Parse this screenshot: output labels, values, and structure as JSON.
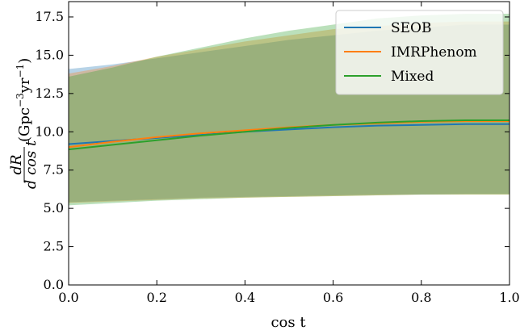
{
  "chart_data": {
    "type": "line",
    "xlabel": "cos t",
    "ylabel": "dR/d cos t (Gpc^-3 yr^-1)",
    "ylabel_parts": {
      "frac_num": "dR",
      "frac_den": "d cos t",
      "units_open": "(Gpc",
      "exp1": "−3",
      "units_mid": "yr",
      "exp2": "−1",
      "units_close": ")"
    },
    "xlim": [
      0.0,
      1.0
    ],
    "ylim": [
      0.0,
      18.5
    ],
    "xticks": [
      "0.0",
      "0.2",
      "0.4",
      "0.6",
      "0.8",
      "1.0"
    ],
    "yticks": [
      "0.0",
      "2.5",
      "5.0",
      "7.5",
      "10.0",
      "12.5",
      "15.0",
      "17.5"
    ],
    "x": [
      0.0,
      0.1,
      0.2,
      0.3,
      0.4,
      0.5,
      0.6,
      0.7,
      0.8,
      0.9,
      1.0
    ],
    "series": [
      {
        "name": "SEOB",
        "color": "#1f77b4",
        "median": [
          9.2,
          9.4,
          9.6,
          9.8,
          10.0,
          10.15,
          10.3,
          10.4,
          10.45,
          10.5,
          10.5
        ],
        "lower": [
          5.4,
          5.5,
          5.6,
          5.7,
          5.75,
          5.8,
          5.85,
          5.9,
          5.9,
          5.95,
          5.95
        ],
        "upper": [
          14.1,
          14.4,
          14.8,
          15.2,
          15.6,
          16.0,
          16.3,
          16.6,
          16.8,
          17.0,
          17.0
        ]
      },
      {
        "name": "IMRPhenom",
        "color": "#ff7f0e",
        "median": [
          9.0,
          9.35,
          9.65,
          9.9,
          10.1,
          10.3,
          10.45,
          10.55,
          10.65,
          10.7,
          10.7
        ],
        "lower": [
          5.35,
          5.45,
          5.55,
          5.65,
          5.7,
          5.75,
          5.8,
          5.85,
          5.9,
          5.9,
          5.9
        ],
        "upper": [
          13.8,
          14.3,
          14.9,
          15.4,
          15.9,
          16.3,
          16.7,
          16.9,
          17.1,
          17.2,
          17.2
        ]
      },
      {
        "name": "Mixed",
        "color": "#2ca02c",
        "median": [
          8.85,
          9.15,
          9.45,
          9.75,
          10.0,
          10.25,
          10.45,
          10.6,
          10.7,
          10.75,
          10.75
        ],
        "lower": [
          5.2,
          5.35,
          5.5,
          5.6,
          5.7,
          5.75,
          5.8,
          5.85,
          5.9,
          5.9,
          5.9
        ],
        "upper": [
          13.6,
          14.2,
          14.9,
          15.5,
          16.1,
          16.6,
          17.0,
          17.4,
          17.6,
          17.7,
          17.7
        ]
      }
    ],
    "legend": {
      "position": "top-right",
      "entries": [
        "SEOB",
        "IMRPhenom",
        "Mixed"
      ]
    },
    "grid": false
  }
}
